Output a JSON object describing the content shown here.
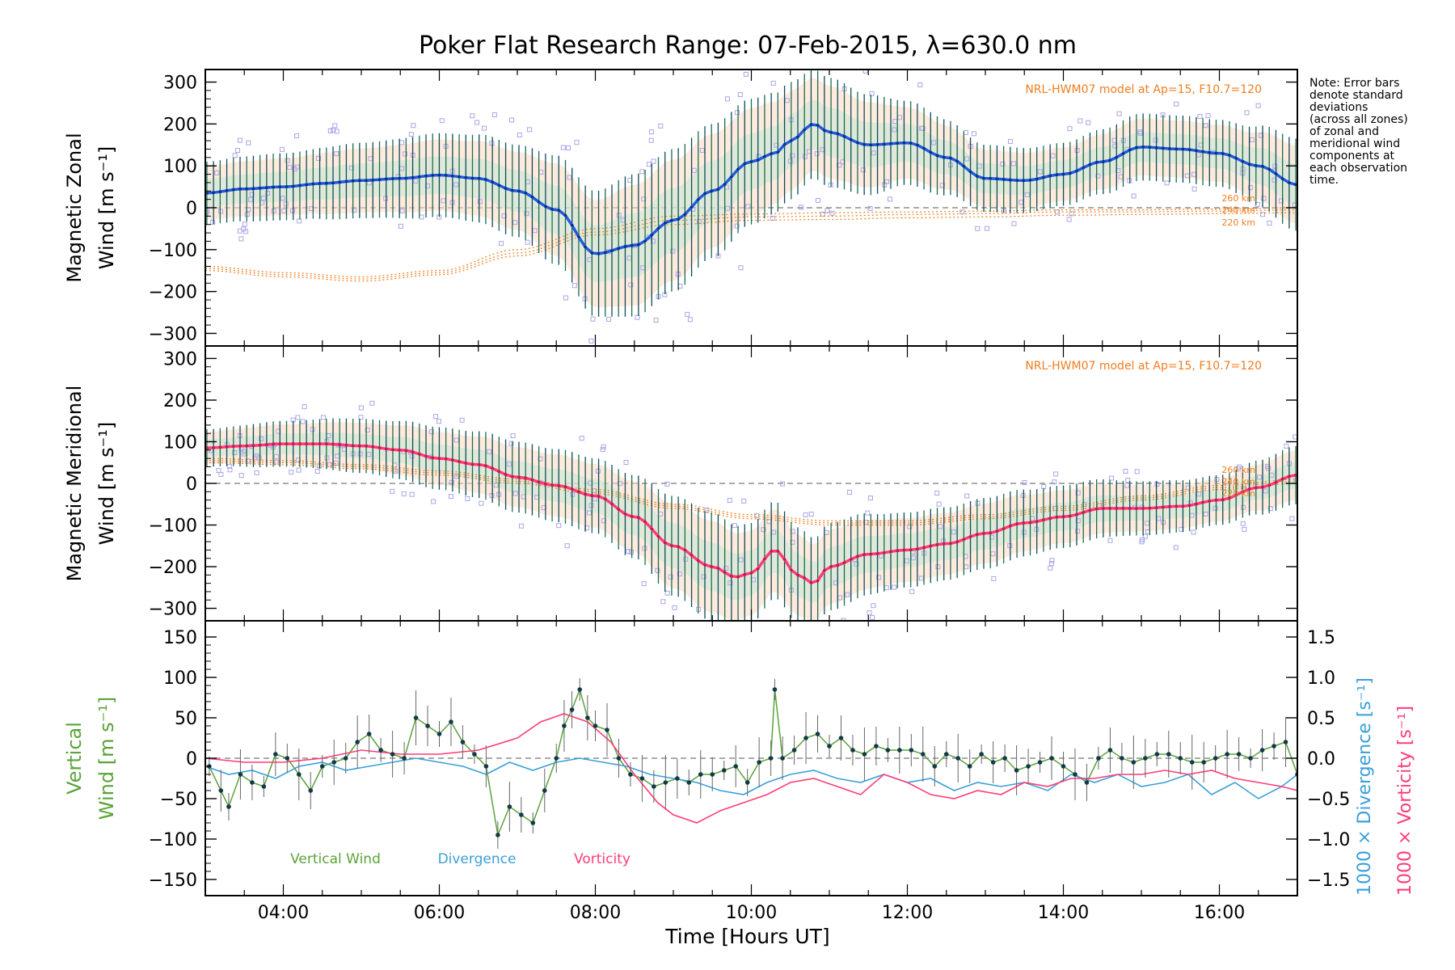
{
  "chart_data": {
    "type": "line",
    "title": "Poker Flat Research Range: 07-Feb-2015, λ=630.0 nm",
    "xlabel": "Time [Hours UT]",
    "xlim": [
      3.0,
      17.0
    ],
    "x_ticks": [
      4,
      6,
      8,
      10,
      12,
      14,
      16
    ],
    "x_tick_labels": [
      "04:00",
      "06:00",
      "08:00",
      "10:00",
      "12:00",
      "14:00",
      "16:00"
    ],
    "note": [
      "Note: Error bars",
      "denote standard",
      "deviations",
      "(across all zones)",
      "of zonal and",
      "meridional wind",
      "components at",
      "each observation",
      "time."
    ],
    "panels": [
      {
        "id": "zonal",
        "ylabel_lines": [
          "Magnetic Zonal",
          "Wind [m s⁻¹]"
        ],
        "ylim": [
          -330,
          330
        ],
        "y_ticks": [
          -300,
          -200,
          -100,
          0,
          100,
          200,
          300
        ],
        "model_label": "NRL-HWM07 model at Ap=15, F10.7=120",
        "model_altitude_labels": [
          "260 km",
          "240 km",
          "220 km"
        ],
        "mean_color": "#1f5be0",
        "mean_key_points": {
          "x": [
            3.0,
            3.5,
            4.0,
            4.5,
            5.0,
            5.5,
            6.0,
            6.5,
            7.0,
            7.5,
            8.0,
            8.5,
            9.0,
            9.5,
            10.0,
            10.3,
            10.5,
            10.8,
            11.0,
            11.5,
            12.0,
            12.5,
            13.0,
            13.5,
            14.0,
            14.5,
            15.0,
            15.5,
            16.0,
            16.5,
            17.0
          ],
          "y": [
            35,
            45,
            50,
            58,
            65,
            70,
            78,
            70,
            40,
            -5,
            -110,
            -90,
            -30,
            40,
            110,
            130,
            160,
            200,
            180,
            150,
            155,
            120,
            70,
            65,
            80,
            110,
            145,
            140,
            130,
            100,
            55
          ]
        },
        "envelope_key_points": {
          "x": [
            3.0,
            4.0,
            5.0,
            6.0,
            7.0,
            7.5,
            8.0,
            8.5,
            9.0,
            9.5,
            10.0,
            10.5,
            10.8,
            11.0,
            11.5,
            12.0,
            13.0,
            14.0,
            15.0,
            16.0,
            17.0
          ],
          "halfwidth": [
            75,
            80,
            90,
            100,
            110,
            130,
            150,
            170,
            170,
            160,
            150,
            140,
            130,
            130,
            120,
            100,
            80,
            75,
            80,
            80,
            110
          ]
        },
        "model_curves": [
          {
            "altitude": "260 km",
            "x": [
              3.0,
              4.0,
              5.0,
              6.0,
              7.0,
              8.0,
              9.0,
              10.0,
              11.0,
              12.0,
              13.0,
              14.0,
              15.0,
              16.0,
              17.0
            ],
            "y": [
              -140,
              -155,
              -165,
              -150,
              -100,
              -50,
              -20,
              -15,
              -12,
              -10,
              -8,
              -5,
              -5,
              -3,
              0
            ]
          },
          {
            "altitude": "240 km",
            "x": [
              3.0,
              4.0,
              5.0,
              6.0,
              7.0,
              8.0,
              9.0,
              10.0,
              11.0,
              12.0,
              13.0,
              14.0,
              15.0,
              16.0,
              17.0
            ],
            "y": [
              -145,
              -160,
              -170,
              -155,
              -108,
              -58,
              -30,
              -22,
              -20,
              -16,
              -14,
              -10,
              -10,
              -8,
              -5
            ]
          },
          {
            "altitude": "220 km",
            "x": [
              3.0,
              4.0,
              5.0,
              6.0,
              7.0,
              8.0,
              9.0,
              10.0,
              11.0,
              12.0,
              13.0,
              14.0,
              15.0,
              16.0,
              17.0
            ],
            "y": [
              -150,
              -165,
              -175,
              -160,
              -115,
              -65,
              -40,
              -30,
              -28,
              -24,
              -22,
              -18,
              -16,
              -14,
              -12
            ]
          }
        ]
      },
      {
        "id": "meridional",
        "ylabel_lines": [
          "Magnetic Meridional",
          "Wind [m s⁻¹]"
        ],
        "ylim": [
          -330,
          330
        ],
        "y_ticks": [
          -300,
          -200,
          -100,
          0,
          100,
          200,
          300
        ],
        "model_label": "NRL-HWM07 model at Ap=15, F10.7=120",
        "model_altitude_labels": [
          "260 km",
          "240 km",
          "220 km"
        ],
        "mean_color": "#ff3c78",
        "mean_key_points": {
          "x": [
            3.0,
            3.5,
            4.0,
            4.5,
            5.0,
            5.5,
            6.0,
            6.5,
            7.0,
            7.5,
            8.0,
            8.5,
            9.0,
            9.5,
            9.8,
            10.0,
            10.3,
            10.6,
            10.8,
            11.0,
            11.5,
            12.0,
            12.5,
            13.0,
            13.5,
            14.0,
            14.5,
            15.0,
            15.5,
            16.0,
            16.5,
            17.0
          ],
          "y": [
            85,
            90,
            95,
            95,
            90,
            80,
            60,
            45,
            15,
            -5,
            -30,
            -80,
            -150,
            -200,
            -225,
            -215,
            -160,
            -220,
            -240,
            -200,
            -170,
            -160,
            -145,
            -120,
            -95,
            -80,
            -60,
            -60,
            -55,
            -40,
            -10,
            20
          ]
        },
        "envelope_key_points": {
          "x": [
            3.0,
            4.0,
            5.0,
            6.0,
            7.0,
            8.0,
            8.5,
            9.0,
            9.5,
            10.0,
            10.5,
            11.0,
            12.0,
            13.0,
            14.0,
            15.0,
            16.0,
            17.0
          ],
          "halfwidth": [
            45,
            55,
            65,
            75,
            85,
            90,
            100,
            120,
            130,
            120,
            115,
            105,
            90,
            85,
            75,
            65,
            60,
            70
          ]
        },
        "model_curves": [
          {
            "altitude": "260 km",
            "x": [
              3.0,
              4.0,
              5.0,
              6.0,
              7.0,
              8.0,
              9.0,
              10.0,
              11.0,
              12.0,
              13.0,
              14.0,
              15.0,
              16.0,
              17.0
            ],
            "y": [
              60,
              55,
              45,
              30,
              10,
              -15,
              -50,
              -75,
              -90,
              -90,
              -75,
              -55,
              -30,
              -5,
              10
            ]
          },
          {
            "altitude": "240 km",
            "x": [
              3.0,
              4.0,
              5.0,
              6.0,
              7.0,
              8.0,
              9.0,
              10.0,
              11.0,
              12.0,
              13.0,
              14.0,
              15.0,
              16.0,
              17.0
            ],
            "y": [
              55,
              50,
              40,
              25,
              5,
              -20,
              -55,
              -80,
              -95,
              -95,
              -80,
              -60,
              -35,
              -10,
              5
            ]
          },
          {
            "altitude": "220 km",
            "x": [
              3.0,
              4.0,
              5.0,
              6.0,
              7.0,
              8.0,
              9.0,
              10.0,
              11.0,
              12.0,
              13.0,
              14.0,
              15.0,
              16.0,
              17.0
            ],
            "y": [
              50,
              45,
              35,
              20,
              0,
              -25,
              -60,
              -85,
              -100,
              -100,
              -85,
              -65,
              -40,
              -15,
              0
            ]
          }
        ]
      },
      {
        "id": "vertical",
        "ylabel_lines": [
          "Vertical",
          "Wind [m s⁻¹]"
        ],
        "ylim": [
          -170,
          170
        ],
        "y_ticks": [
          -150,
          -100,
          -50,
          0,
          50,
          100,
          150
        ],
        "y2lim": [
          -1.7,
          1.7
        ],
        "y2_ticks": [
          -1.5,
          -1.0,
          -0.5,
          0.0,
          0.5,
          1.0,
          1.5
        ],
        "y2_tick_labels": [
          "−1.5",
          "−1.0",
          "−0.5",
          "0.0",
          "0.5",
          "1.0",
          "1.5"
        ],
        "y2label_divergence": "1000 × Divergence [s⁻¹]",
        "y2label_vorticity": "1000 × Vorticity [s⁻¹]",
        "legend": [
          {
            "label": "Vertical Wind",
            "color": "#5ca33a"
          },
          {
            "label": "Divergence",
            "color": "#3aa0d8"
          },
          {
            "label": "Vorticity",
            "color": "#ff3c78"
          }
        ],
        "series": [
          {
            "name": "Vertical Wind",
            "color": "#5ca33a",
            "x": [
              3.05,
              3.2,
              3.3,
              3.45,
              3.6,
              3.75,
              3.9,
              4.05,
              4.2,
              4.35,
              4.5,
              4.65,
              4.8,
              4.95,
              5.1,
              5.25,
              5.4,
              5.55,
              5.7,
              5.85,
              6.0,
              6.15,
              6.3,
              6.45,
              6.6,
              6.75,
              6.9,
              7.05,
              7.2,
              7.35,
              7.5,
              7.6,
              7.7,
              7.8,
              7.9,
              8.0,
              8.15,
              8.3,
              8.45,
              8.6,
              8.75,
              8.9,
              9.05,
              9.2,
              9.35,
              9.5,
              9.65,
              9.8,
              9.95,
              10.1,
              10.25,
              10.3,
              10.4,
              10.55,
              10.7,
              10.85,
              11.0,
              11.15,
              11.3,
              11.45,
              11.6,
              11.75,
              11.9,
              12.05,
              12.2,
              12.35,
              12.5,
              12.65,
              12.8,
              12.95,
              13.1,
              13.25,
              13.4,
              13.55,
              13.7,
              13.85,
              14.0,
              14.15,
              14.3,
              14.45,
              14.6,
              14.75,
              14.9,
              15.05,
              15.2,
              15.35,
              15.5,
              15.65,
              15.8,
              15.95,
              16.1,
              16.25,
              16.4,
              16.55,
              16.7,
              16.85,
              17.0
            ],
            "y": [
              -10,
              -40,
              -60,
              -20,
              -30,
              -35,
              5,
              0,
              -20,
              -40,
              -10,
              -5,
              0,
              20,
              30,
              10,
              5,
              0,
              50,
              40,
              30,
              45,
              20,
              5,
              -10,
              -95,
              -60,
              -70,
              -80,
              -40,
              0,
              40,
              60,
              85,
              50,
              40,
              35,
              0,
              -20,
              -25,
              -35,
              -30,
              -25,
              -30,
              -20,
              -20,
              -15,
              -10,
              -30,
              -5,
              0,
              85,
              0,
              10,
              25,
              30,
              15,
              25,
              10,
              5,
              15,
              10,
              10,
              10,
              5,
              -10,
              5,
              0,
              -10,
              5,
              -5,
              0,
              -15,
              -10,
              -5,
              0,
              -10,
              -20,
              -30,
              0,
              10,
              0,
              -5,
              0,
              5,
              5,
              0,
              -5,
              -5,
              0,
              5,
              5,
              0,
              10,
              15,
              20,
              -20
            ]
          },
          {
            "name": "Divergence",
            "color": "#3aa0d8",
            "axis": "right",
            "x": [
              3.0,
              3.3,
              3.6,
              3.9,
              4.2,
              4.5,
              4.8,
              5.1,
              5.4,
              5.7,
              6.0,
              6.3,
              6.6,
              6.9,
              7.2,
              7.5,
              7.8,
              8.1,
              8.4,
              8.7,
              9.0,
              9.3,
              9.6,
              9.9,
              10.2,
              10.5,
              10.8,
              11.1,
              11.4,
              11.7,
              12.0,
              12.3,
              12.6,
              12.9,
              13.2,
              13.5,
              13.8,
              14.1,
              14.4,
              14.7,
              15.0,
              15.3,
              15.6,
              15.9,
              16.2,
              16.5,
              16.8,
              17.0
            ],
            "y": [
              -0.1,
              -0.2,
              -0.15,
              -0.25,
              -0.1,
              -0.05,
              -0.15,
              -0.1,
              -0.05,
              0.0,
              -0.05,
              -0.1,
              -0.2,
              -0.05,
              -0.15,
              -0.05,
              0.0,
              -0.05,
              -0.1,
              -0.2,
              -0.25,
              -0.3,
              -0.4,
              -0.45,
              -0.3,
              -0.2,
              -0.15,
              -0.25,
              -0.3,
              -0.2,
              -0.3,
              -0.25,
              -0.4,
              -0.3,
              -0.35,
              -0.3,
              -0.4,
              -0.2,
              -0.3,
              -0.2,
              -0.35,
              -0.3,
              -0.2,
              -0.45,
              -0.3,
              -0.5,
              -0.35,
              -0.2
            ]
          },
          {
            "name": "Vorticity",
            "color": "#ff3c78",
            "axis": "right",
            "x": [
              3.0,
              3.5,
              4.0,
              4.5,
              5.0,
              5.5,
              6.0,
              6.5,
              7.0,
              7.3,
              7.6,
              7.9,
              8.2,
              8.5,
              8.8,
              9.0,
              9.3,
              9.6,
              9.9,
              10.2,
              10.5,
              10.8,
              11.1,
              11.4,
              11.7,
              12.0,
              12.3,
              12.6,
              12.9,
              13.2,
              13.5,
              13.8,
              14.1,
              14.4,
              14.7,
              15.0,
              15.3,
              15.6,
              15.9,
              16.2,
              16.5,
              16.8,
              17.0
            ],
            "y": [
              0.0,
              -0.05,
              -0.05,
              0.0,
              0.1,
              0.05,
              0.05,
              0.1,
              0.25,
              0.45,
              0.55,
              0.45,
              0.2,
              -0.2,
              -0.55,
              -0.7,
              -0.8,
              -0.65,
              -0.55,
              -0.45,
              -0.3,
              -0.25,
              -0.35,
              -0.45,
              -0.2,
              -0.3,
              -0.45,
              -0.5,
              -0.4,
              -0.45,
              -0.3,
              -0.35,
              -0.25,
              -0.25,
              -0.2,
              -0.2,
              -0.15,
              -0.2,
              -0.15,
              -0.25,
              -0.3,
              -0.35,
              -0.4
            ]
          }
        ]
      }
    ]
  }
}
